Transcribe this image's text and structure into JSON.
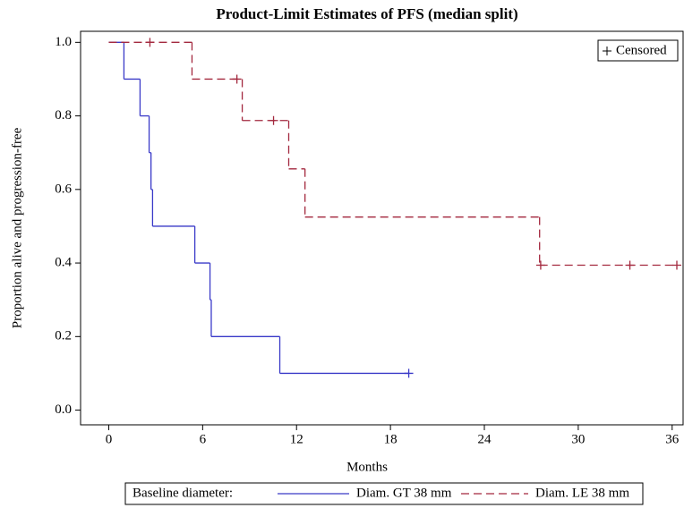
{
  "chart_data": {
    "type": "step",
    "title": "Product-Limit Estimates of PFS (median split)",
    "x_label": "Months",
    "y_label": "Proportion alive and progression-free",
    "xlim": [
      -1.8,
      36.7
    ],
    "ylim": [
      -0.04,
      1.03
    ],
    "xticks": [
      0,
      6,
      12,
      18,
      24,
      30,
      36
    ],
    "yticks": [
      {
        "value": 0,
        "label": "0.0"
      },
      0.2,
      0.4,
      0.6,
      0.8,
      {
        "value": 1,
        "label": "1.0"
      }
    ],
    "censored_label": "Censored",
    "legend_title": "Baseline diameter:",
    "series": [
      {
        "name": "Diam. GT 38 mm",
        "color": "#3a3ac8",
        "line_style": "solid",
        "x": [
          0,
          0.97,
          2.0,
          2.58,
          2.7,
          2.8,
          5.5,
          6.47,
          6.55,
          10.93,
          19.17
        ],
        "values": [
          1,
          0.9,
          0.8,
          0.7,
          0.6,
          0.5,
          0.4,
          0.3,
          0.2,
          0.1,
          0.1
        ],
        "censored_x": [
          19.17
        ],
        "censored_values": [
          0.1
        ]
      },
      {
        "name": "Diam. LE 38 mm",
        "color": "#a3283e",
        "line_style": "dashed",
        "x": [
          0,
          5.32,
          8.53,
          11.5,
          12.54,
          27.53,
          36.3
        ],
        "values": [
          1,
          0.9,
          0.7875,
          0.656,
          0.525,
          0.394,
          0.394
        ],
        "censored_x": [
          2.63,
          8.19,
          10.53,
          27.6,
          33.3,
          36.3
        ],
        "censored_values": [
          1,
          0.9,
          0.7875,
          0.394,
          0.394,
          0.394
        ]
      }
    ]
  }
}
